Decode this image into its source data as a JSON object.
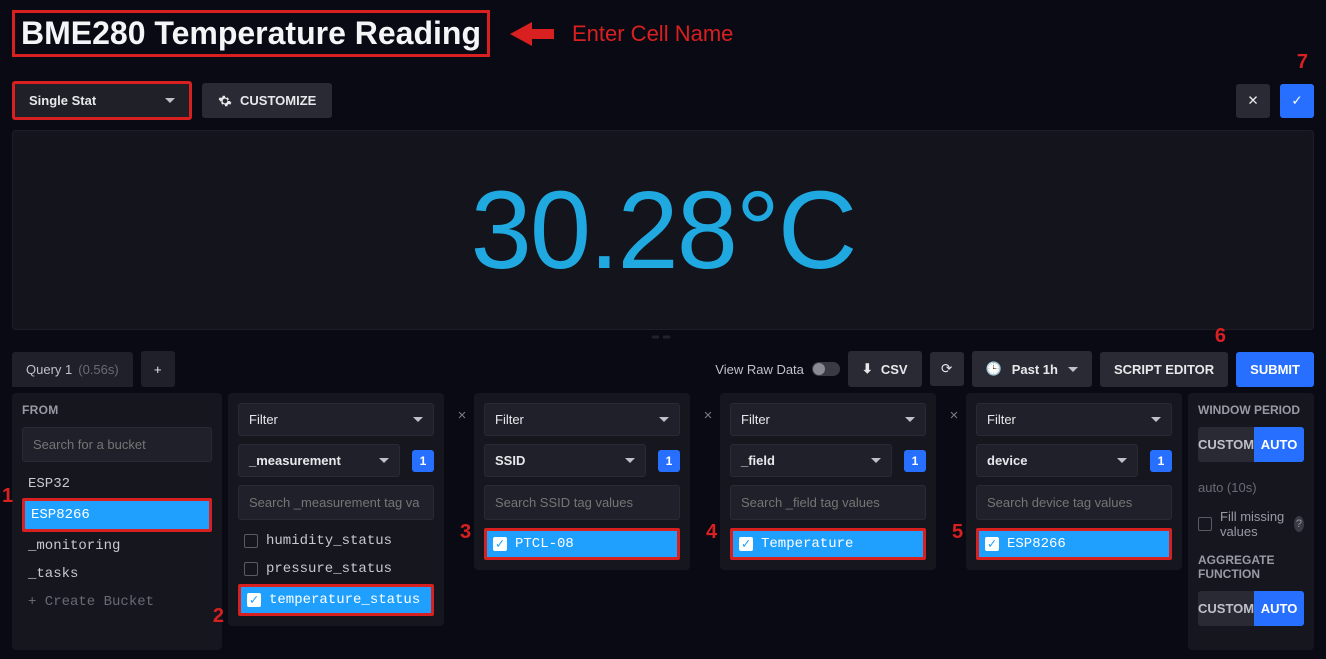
{
  "title": "BME280 Temperature Reading",
  "hint": "Enter Cell Name",
  "toolbar": {
    "viz_type": "Single Stat",
    "customize": "CUSTOMIZE"
  },
  "stat_value": "30.28°C",
  "stat_color": "#1fa9e0",
  "query_tab": {
    "name": "Query 1",
    "time": "(0.56s)"
  },
  "query_bar": {
    "raw_data": "View Raw Data",
    "csv": "CSV",
    "time_range": "Past 1h",
    "script_editor": "SCRIPT EDITOR",
    "submit": "SUBMIT"
  },
  "from": {
    "label": "FROM",
    "search_ph": "Search for a bucket",
    "buckets": [
      "ESP32",
      "ESP8266",
      "_monitoring",
      "_tasks"
    ],
    "selected": "ESP8266",
    "create": "+ Create Bucket"
  },
  "filters": [
    {
      "type_label": "Filter",
      "tag_key": "_measurement",
      "count": "1",
      "search_ph": "Search _measurement tag va",
      "values": [
        {
          "name": "humidity_status",
          "selected": false
        },
        {
          "name": "pressure_status",
          "selected": false
        },
        {
          "name": "temperature_status",
          "selected": true
        }
      ],
      "removable": false
    },
    {
      "type_label": "Filter",
      "tag_key": "SSID",
      "count": "1",
      "search_ph": "Search SSID tag values",
      "values": [
        {
          "name": "PTCL-08",
          "selected": true
        }
      ],
      "removable": true
    },
    {
      "type_label": "Filter",
      "tag_key": "_field",
      "count": "1",
      "search_ph": "Search _field tag values",
      "values": [
        {
          "name": "Temperature",
          "selected": true
        }
      ],
      "removable": true
    },
    {
      "type_label": "Filter",
      "tag_key": "device",
      "count": "1",
      "search_ph": "Search device tag values",
      "values": [
        {
          "name": "ESP8266",
          "selected": true
        }
      ],
      "removable": true
    }
  ],
  "side": {
    "window_period": "WINDOW PERIOD",
    "custom": "CUSTOM",
    "auto": "AUTO",
    "auto_value": "auto (10s)",
    "fill_missing": "Fill missing values",
    "agg_func": "AGGREGATE FUNCTION"
  },
  "annotations": [
    "1",
    "2",
    "3",
    "4",
    "5",
    "6",
    "7"
  ]
}
